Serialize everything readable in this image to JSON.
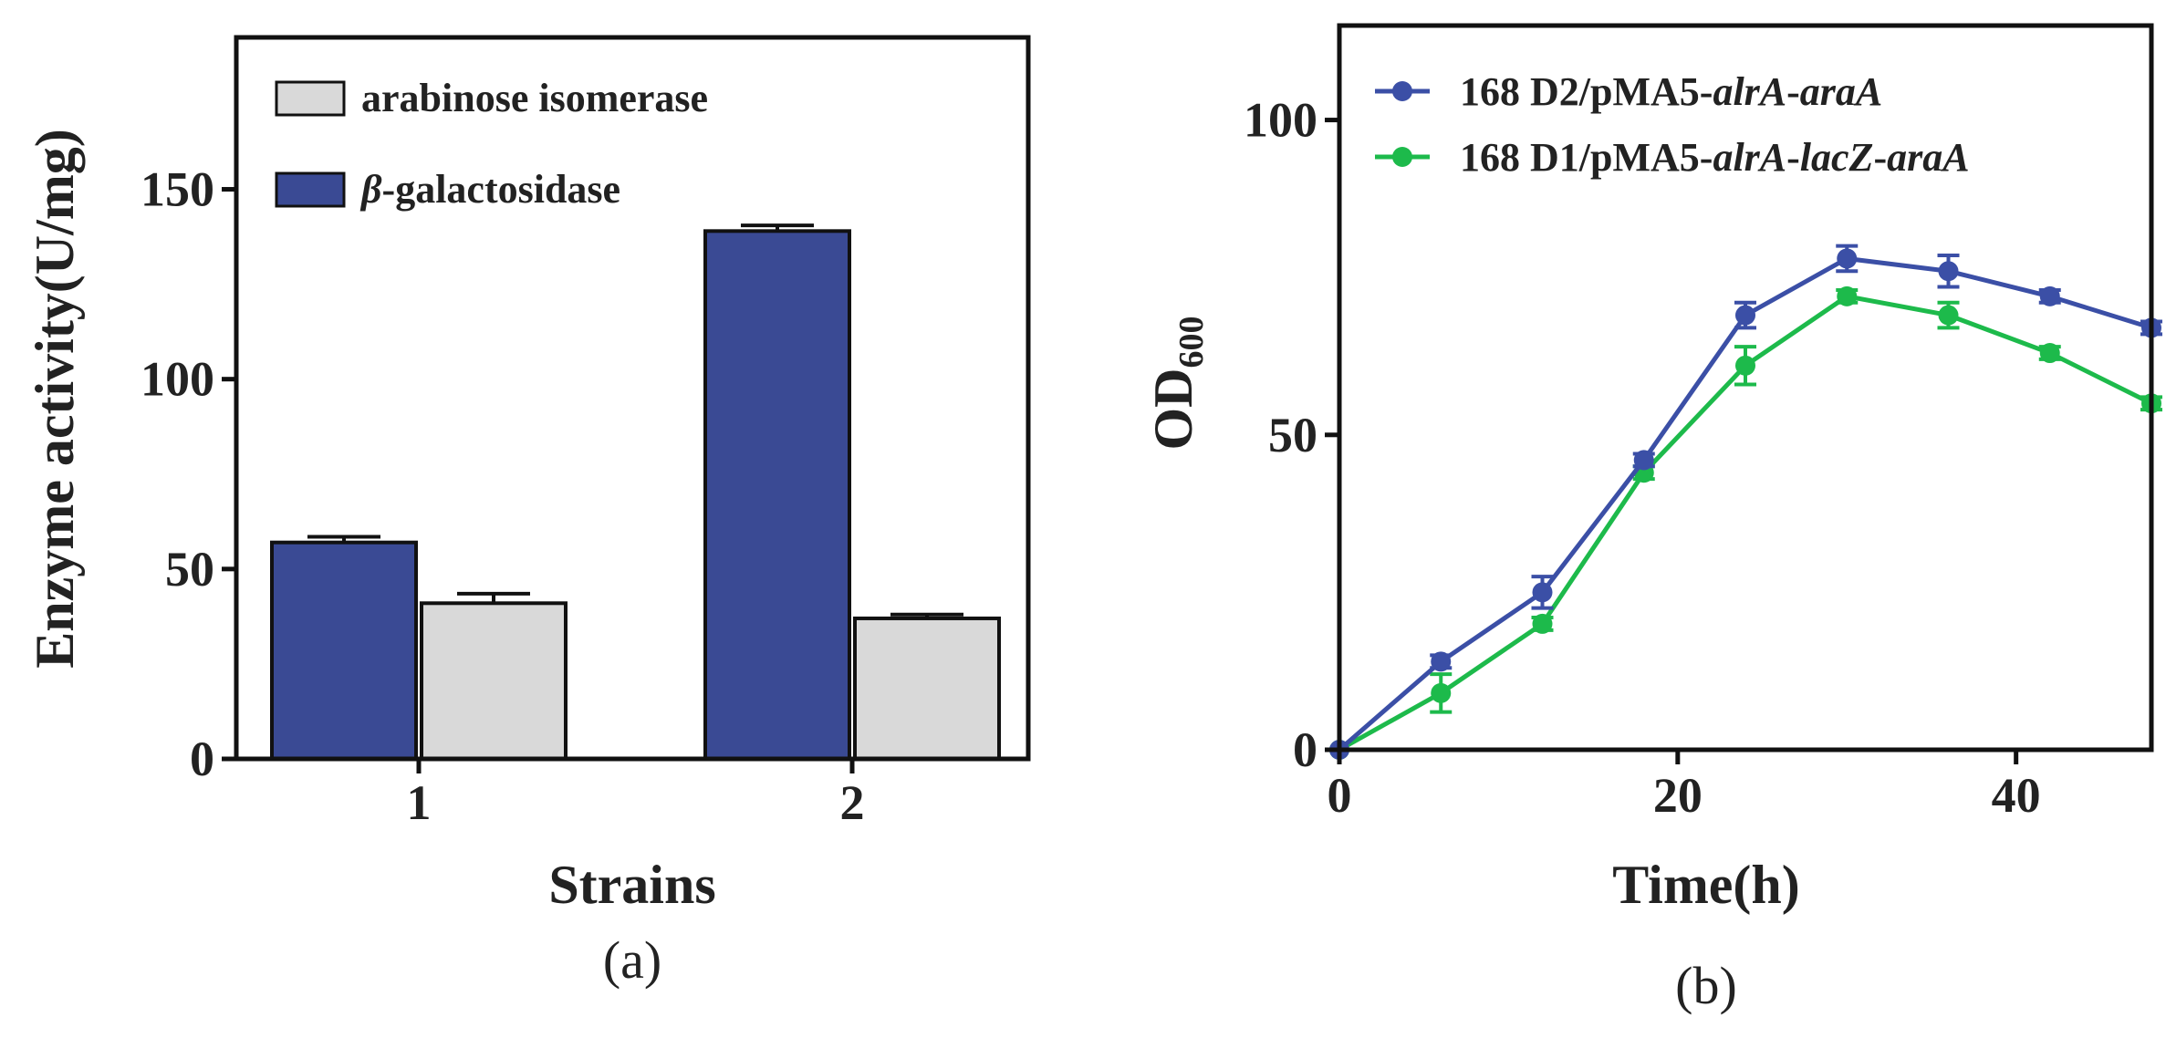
{
  "colors": {
    "galactosidase": "#3a4a94",
    "isomerase": "#d9d9d9",
    "line_d2": "#3b4fa6",
    "line_d1": "#1dba4b",
    "axis": "#111111"
  },
  "chart_data": [
    {
      "type": "bar",
      "panel_label": "(a)",
      "categories": [
        "1",
        "2"
      ],
      "series": [
        {
          "name": "β-galactosidase",
          "legend_prefix": "β",
          "legend_suffix": "-galactosidase",
          "values": [
            57,
            139
          ],
          "errors": [
            1.5,
            1.5
          ]
        },
        {
          "name": "arabinose isomerase",
          "values": [
            41,
            37
          ],
          "errors": [
            2.5,
            1.0
          ]
        }
      ],
      "legend_order": [
        "arabinose isomerase",
        "β-galactosidase"
      ],
      "xlabel": "Strains",
      "ylabel": "Enzyme activity(U/mg)",
      "ylim": [
        0,
        190
      ],
      "yticks": [
        0,
        50,
        100,
        150
      ],
      "legend_position": "top-left"
    },
    {
      "type": "line",
      "panel_label": "(b)",
      "x": [
        0,
        6,
        12,
        18,
        24,
        30,
        36,
        42,
        48
      ],
      "series": [
        {
          "name": "168 D2/pMA5-alrA-araA",
          "legend_parts": [
            {
              "text": "168 D2/pMA5-",
              "italic": false
            },
            {
              "text": "alrA",
              "italic": true
            },
            {
              "text": "-",
              "italic": false
            },
            {
              "text": "araA",
              "italic": true
            }
          ],
          "values": [
            0,
            14,
            25,
            46,
            69,
            78,
            76,
            72,
            67
          ],
          "errors": [
            0,
            1,
            2.5,
            1,
            2,
            2,
            2.5,
            1,
            1
          ]
        },
        {
          "name": "168 D1/pMA5-alrA-lacZ-araA",
          "legend_parts": [
            {
              "text": "168 D1/pMA5-",
              "italic": false
            },
            {
              "text": "alrA",
              "italic": true
            },
            {
              "text": "-",
              "italic": false
            },
            {
              "text": "lacZ",
              "italic": true
            },
            {
              "text": "-",
              "italic": false
            },
            {
              "text": "araA",
              "italic": true
            }
          ],
          "values": [
            0,
            9,
            20,
            44,
            61,
            72,
            69,
            63,
            55
          ],
          "errors": [
            0,
            3,
            1,
            1,
            3,
            1,
            2,
            1,
            1
          ]
        }
      ],
      "xlabel": "Time(h)",
      "ylabel_main": "OD",
      "ylabel_sub": "600",
      "xlim": [
        0,
        48
      ],
      "ylim": [
        0,
        115
      ],
      "xticks": [
        0,
        20,
        40
      ],
      "yticks": [
        0,
        50,
        100
      ],
      "legend_position": "top-left"
    }
  ]
}
